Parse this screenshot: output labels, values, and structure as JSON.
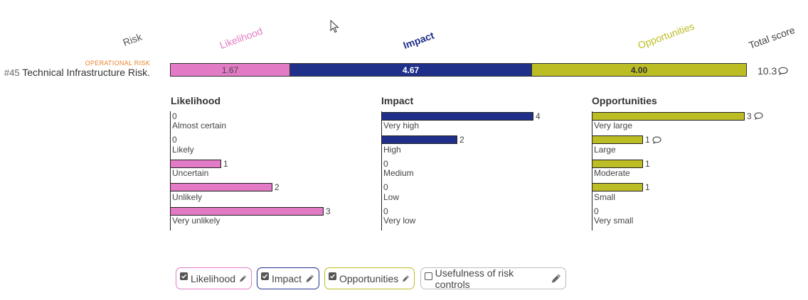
{
  "colors": {
    "likelihood": "#e37ac6",
    "impact": "#1f2f8a",
    "opportunities": "#bcbc24",
    "category": "#e8832a"
  },
  "headers": {
    "risk": "Risk",
    "likelihood": "Likelihood",
    "impact": "Impact",
    "opportunities": "Opportunities",
    "total_score": "Total score"
  },
  "risk": {
    "category": "OPERATIONAL RISK",
    "number": "#45",
    "title": "Technical Infrastructure Risk.",
    "likelihood_score": "1.67",
    "impact_score": "4.67",
    "opportunities_score": "4.00",
    "total": "10.3"
  },
  "likelihood": {
    "title": "Likelihood",
    "items": [
      {
        "label": "Almost certain",
        "count": "0",
        "n": 0
      },
      {
        "label": "Likely",
        "count": "0",
        "n": 0
      },
      {
        "label": "Uncertain",
        "count": "1",
        "n": 1
      },
      {
        "label": "Unlikely",
        "count": "2",
        "n": 2
      },
      {
        "label": "Very unlikely",
        "count": "3",
        "n": 3
      }
    ]
  },
  "impact": {
    "title": "Impact",
    "items": [
      {
        "label": "Very high",
        "count": "4",
        "n": 4
      },
      {
        "label": "High",
        "count": "2",
        "n": 2
      },
      {
        "label": "Medium",
        "count": "0",
        "n": 0
      },
      {
        "label": "Low",
        "count": "0",
        "n": 0
      },
      {
        "label": "Very low",
        "count": "0",
        "n": 0
      }
    ]
  },
  "opportunities": {
    "title": "Opportunities",
    "items": [
      {
        "label": "Very large",
        "count": "3",
        "n": 3,
        "comment": true
      },
      {
        "label": "Large",
        "count": "1",
        "n": 1,
        "comment": true
      },
      {
        "label": "Moderate",
        "count": "1",
        "n": 1
      },
      {
        "label": "Small",
        "count": "1",
        "n": 1
      },
      {
        "label": "Very small",
        "count": "0",
        "n": 0
      }
    ]
  },
  "filters": [
    {
      "label": "Likelihood",
      "checked": true
    },
    {
      "label": "Impact",
      "checked": true
    },
    {
      "label": "Opportunities",
      "checked": true
    },
    {
      "label": "Usefulness of risk controls",
      "checked": false
    }
  ]
}
